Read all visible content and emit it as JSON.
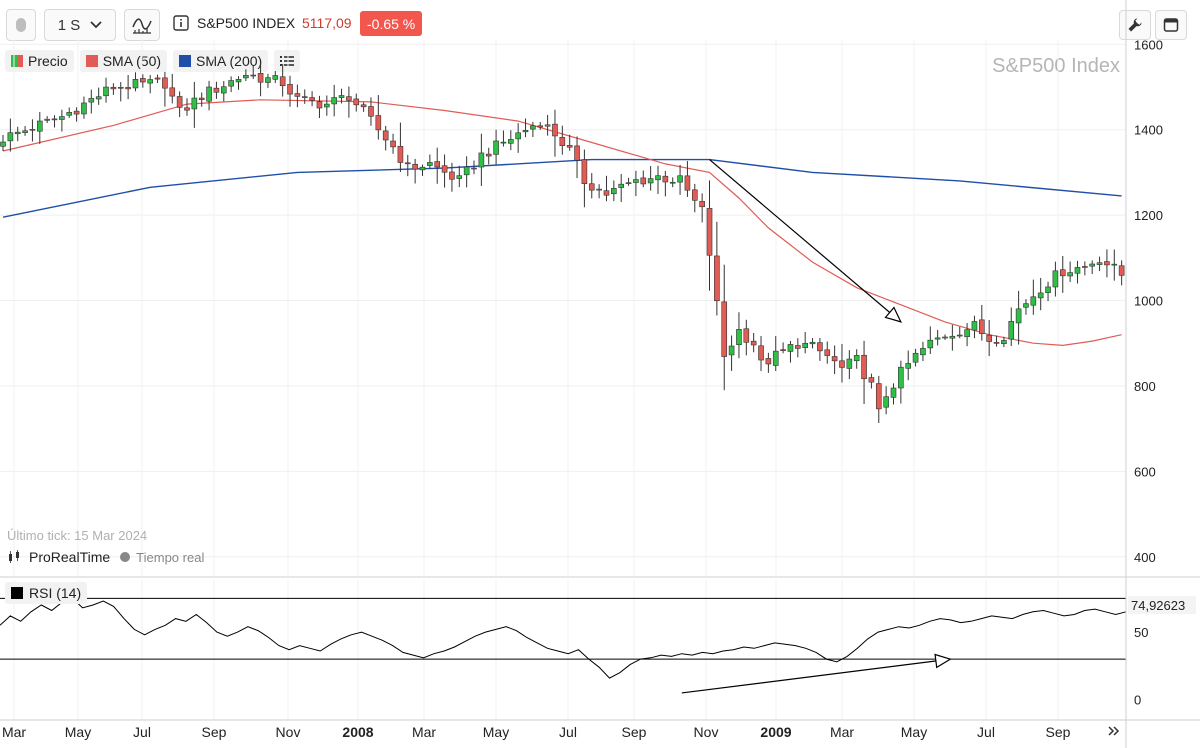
{
  "toolbar": {
    "interval_label": "1 S",
    "info_icon": "info-icon",
    "instrument_name": "S&P500 INDEX",
    "last_price": "5117,09",
    "change_percent": "-0.65 %",
    "colors": {
      "price": "#d03a2e",
      "badge": "#f2564d"
    }
  },
  "legend": {
    "items": [
      {
        "label": "Precio",
        "color_up": "#2fbf46",
        "color_down": "#e05c55"
      },
      {
        "label": "SMA (50)",
        "color": "#e05c55"
      },
      {
        "label": "SMA (200)",
        "color": "#1f4fa8"
      }
    ]
  },
  "watermark": "S&P500 Index",
  "last_tick": "Último tick: 15 Mar 2024",
  "provider": {
    "name": "ProRealTime",
    "mode": "Tiempo real"
  },
  "rsi_panel": {
    "label": "RSI (14)",
    "current_value": "74,92623"
  },
  "chart_data": [
    {
      "type": "candlestick",
      "title": "",
      "y_ticks": [
        400,
        600,
        800,
        1000,
        1200,
        1400,
        1600
      ],
      "ylim": [
        355,
        1610
      ],
      "x_tick_labels": [
        {
          "label": "Mar",
          "bold": false
        },
        {
          "label": "May",
          "bold": false
        },
        {
          "label": "Jul",
          "bold": false
        },
        {
          "label": "Sep",
          "bold": false
        },
        {
          "label": "Nov",
          "bold": false
        },
        {
          "label": "2008",
          "bold": true
        },
        {
          "label": "Mar",
          "bold": false
        },
        {
          "label": "May",
          "bold": false
        },
        {
          "label": "Jul",
          "bold": false
        },
        {
          "label": "Sep",
          "bold": false
        },
        {
          "label": "Nov",
          "bold": false
        },
        {
          "label": "2009",
          "bold": true
        },
        {
          "label": "Mar",
          "bold": false
        },
        {
          "label": "May",
          "bold": false
        },
        {
          "label": "Jul",
          "bold": false
        },
        {
          "label": "Sep",
          "bold": false
        }
      ],
      "close_anchors": [
        [
          0,
          1380
        ],
        [
          8,
          1430
        ],
        [
          15,
          1500
        ],
        [
          22,
          1510
        ],
        [
          24,
          1440
        ],
        [
          27,
          1480
        ],
        [
          33,
          1530
        ],
        [
          38,
          1510
        ],
        [
          40,
          1470
        ],
        [
          44,
          1460
        ],
        [
          47,
          1480
        ],
        [
          50,
          1420
        ],
        [
          53,
          1360
        ],
        [
          55,
          1310
        ],
        [
          58,
          1320
        ],
        [
          62,
          1280
        ],
        [
          65,
          1340
        ],
        [
          70,
          1390
        ],
        [
          73,
          1420
        ],
        [
          75,
          1390
        ],
        [
          77,
          1350
        ],
        [
          79,
          1280
        ],
        [
          82,
          1250
        ],
        [
          86,
          1280
        ],
        [
          89,
          1290
        ],
        [
          92,
          1280
        ],
        [
          94,
          1230
        ],
        [
          95,
          1210
        ],
        [
          96,
          1110
        ],
        [
          98,
          870
        ],
        [
          100,
          930
        ],
        [
          102,
          900
        ],
        [
          103,
          850
        ],
        [
          105,
          870
        ],
        [
          108,
          900
        ],
        [
          110,
          890
        ],
        [
          112,
          870
        ],
        [
          114,
          840
        ],
        [
          116,
          860
        ],
        [
          118,
          800
        ],
        [
          119,
          735
        ],
        [
          120,
          780
        ],
        [
          122,
          830
        ],
        [
          124,
          870
        ],
        [
          126,
          900
        ],
        [
          128,
          920
        ],
        [
          130,
          930
        ],
        [
          132,
          940
        ],
        [
          134,
          910
        ],
        [
          136,
          920
        ],
        [
          138,
          980
        ],
        [
          141,
          1030
        ],
        [
          144,
          1070
        ],
        [
          147,
          1080
        ],
        [
          149,
          1100
        ],
        [
          152,
          1060
        ]
      ],
      "sma50_points": [
        [
          0,
          1350
        ],
        [
          15,
          1410
        ],
        [
          25,
          1460
        ],
        [
          35,
          1470
        ],
        [
          50,
          1465
        ],
        [
          60,
          1445
        ],
        [
          70,
          1420
        ],
        [
          80,
          1370
        ],
        [
          90,
          1320
        ],
        [
          96,
          1300
        ],
        [
          100,
          1240
        ],
        [
          104,
          1170
        ],
        [
          110,
          1090
        ],
        [
          116,
          1030
        ],
        [
          122,
          990
        ],
        [
          128,
          950
        ],
        [
          134,
          920
        ],
        [
          140,
          900
        ],
        [
          144,
          895
        ],
        [
          148,
          905
        ],
        [
          152,
          920
        ]
      ],
      "sma200_points": [
        [
          0,
          1195
        ],
        [
          20,
          1265
        ],
        [
          40,
          1300
        ],
        [
          60,
          1310
        ],
        [
          80,
          1330
        ],
        [
          96,
          1330
        ],
        [
          110,
          1300
        ],
        [
          130,
          1280
        ],
        [
          152,
          1245
        ]
      ],
      "annotations": [
        {
          "type": "arrow",
          "from": [
            96,
            1330
          ],
          "to": [
            122,
            950
          ],
          "color": "#000000"
        }
      ]
    },
    {
      "type": "line",
      "title": "",
      "name": "RSI (14)",
      "y_ticks": [
        0,
        50
      ],
      "ylim": [
        -15,
        90
      ],
      "hlines": [
        74.9,
        30
      ],
      "values": [
        55,
        62,
        58,
        65,
        70,
        66,
        72,
        75,
        68,
        70,
        73,
        69,
        60,
        52,
        48,
        52,
        55,
        60,
        58,
        63,
        57,
        50,
        47,
        50,
        54,
        51,
        46,
        40,
        37,
        40,
        38,
        36,
        41,
        45,
        48,
        50,
        47,
        44,
        40,
        35,
        33,
        31,
        34,
        36,
        39,
        43,
        47,
        50,
        52,
        54,
        51,
        46,
        42,
        38,
        36,
        34,
        37,
        30,
        24,
        16,
        20,
        26,
        30,
        31,
        33,
        32,
        34,
        33,
        35,
        34,
        36,
        37,
        39,
        38,
        40,
        42,
        41,
        40,
        38,
        35,
        30,
        28,
        32,
        38,
        45,
        50,
        52,
        54,
        53,
        55,
        58,
        60,
        59,
        57,
        58,
        60,
        62,
        61,
        60,
        63,
        65,
        66,
        64,
        62,
        63,
        66,
        67,
        65,
        63,
        65
      ],
      "annotations": [
        {
          "type": "arrow",
          "from_index": 66,
          "from_value": 5,
          "to_index": 92,
          "to_value": 30,
          "color": "#000000"
        }
      ]
    }
  ]
}
